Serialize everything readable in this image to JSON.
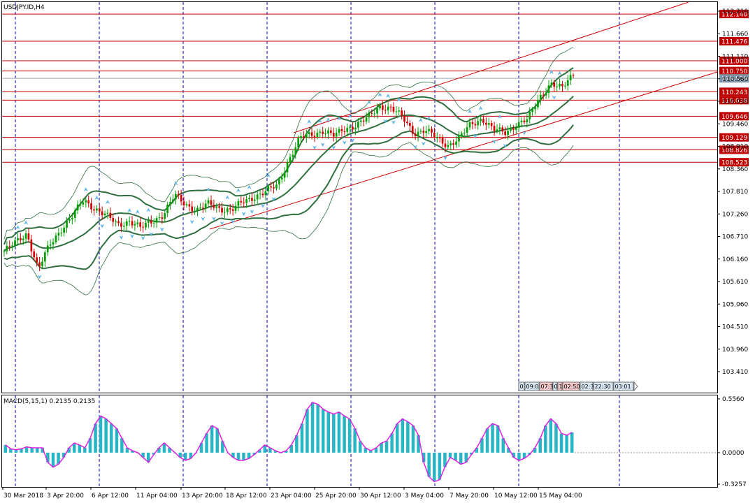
{
  "chart_data": [
    {
      "type": "candlestick",
      "title": "USDJPY.ID,H4",
      "ylim": [
        102.93,
        112.42
      ],
      "y_ticks": [
        "112.210",
        "111.660",
        "111.110",
        "110.560",
        "110.010",
        "109.460",
        "108.910",
        "108.360",
        "107.810",
        "107.260",
        "106.710",
        "106.160",
        "105.610",
        "105.060",
        "104.510",
        "103.960",
        "103.410"
      ],
      "x_labels": [
        "30 Mar 2018",
        "3 Apr 20:00",
        "6 Apr 12:00",
        "11 Apr 04:00",
        "13 Apr 20:00",
        "18 Apr 12:00",
        "23 Apr 04:00",
        "25 Apr 20:00",
        "30 Apr 12:00",
        "3 May 04:00",
        "7 May 20:00",
        "10 May 12:00",
        "15 May 04:00"
      ],
      "horizontal_levels": [
        "112.140",
        "111.476",
        "111.000",
        "110.750",
        "110.243",
        "110.038",
        "109.646",
        "109.129",
        "108.826",
        "108.523"
      ],
      "current_price": "110.570",
      "colors": {
        "up": "#00a000",
        "down": "#d00000",
        "level": "#c00000",
        "band": "#2f6f3f",
        "price_label": "#7f93a6"
      },
      "close_path": [
        106.35,
        106.55,
        106.8,
        105.9,
        106.5,
        106.9,
        107.2,
        107.6,
        107.4,
        107.2,
        107.0,
        107.1,
        106.9,
        107.1,
        107.25,
        107.7,
        107.5,
        107.35,
        107.5,
        107.4,
        107.35,
        107.55,
        107.7,
        107.8,
        107.95,
        108.6,
        109.1,
        109.2,
        109.3,
        109.15,
        109.35,
        109.45,
        109.6,
        109.9,
        109.85,
        109.6,
        109.25,
        109.3,
        109.1,
        108.95,
        109.1,
        109.45,
        109.6,
        109.3,
        109.25,
        109.45,
        109.55,
        110.1,
        110.45,
        110.3,
        110.7
      ],
      "timeframes": [
        "0",
        "09:0",
        "07:3",
        "0",
        "1",
        "02:50",
        "02:3",
        "22:30",
        "03:01"
      ]
    },
    {
      "type": "bar",
      "title": "MACD(5,15,1) 0.2135 0.2135",
      "ylim": [
        -0.3257,
        0.556
      ],
      "y_ticks": [
        "0.5560",
        "0.0000",
        "-0.3257"
      ],
      "values": [
        0.08,
        0.04,
        0.03,
        0.04,
        0.06,
        0.05,
        0.05,
        0.05,
        -0.1,
        -0.15,
        -0.12,
        -0.05,
        0.05,
        0.1,
        0.08,
        0.05,
        0.15,
        0.3,
        0.38,
        0.35,
        0.3,
        0.25,
        0.15,
        0.05,
        0.02,
        0.0,
        -0.05,
        -0.1,
        -0.02,
        0.05,
        0.1,
        0.05,
        0.0,
        -0.05,
        -0.08,
        -0.06,
        0.0,
        0.1,
        0.2,
        0.28,
        0.25,
        0.12,
        0.0,
        -0.05,
        -0.08,
        -0.08,
        -0.06,
        -0.02,
        0.03,
        0.08,
        0.05,
        0.02,
        0.0,
        0.02,
        0.08,
        0.18,
        0.3,
        0.45,
        0.52,
        0.5,
        0.45,
        0.42,
        0.4,
        0.42,
        0.38,
        0.35,
        0.25,
        0.12,
        0.05,
        0.02,
        0.05,
        0.1,
        0.12,
        0.2,
        0.3,
        0.35,
        0.32,
        0.28,
        0.18,
        -0.1,
        -0.25,
        -0.3,
        -0.28,
        -0.15,
        -0.05,
        -0.08,
        -0.12,
        -0.1,
        -0.02,
        0.05,
        0.15,
        0.25,
        0.3,
        0.28,
        0.15,
        0.05,
        -0.05,
        -0.08,
        -0.06,
        -0.02,
        0.05,
        0.15,
        0.28,
        0.35,
        0.3,
        0.2,
        0.18,
        0.21
      ]
    }
  ]
}
